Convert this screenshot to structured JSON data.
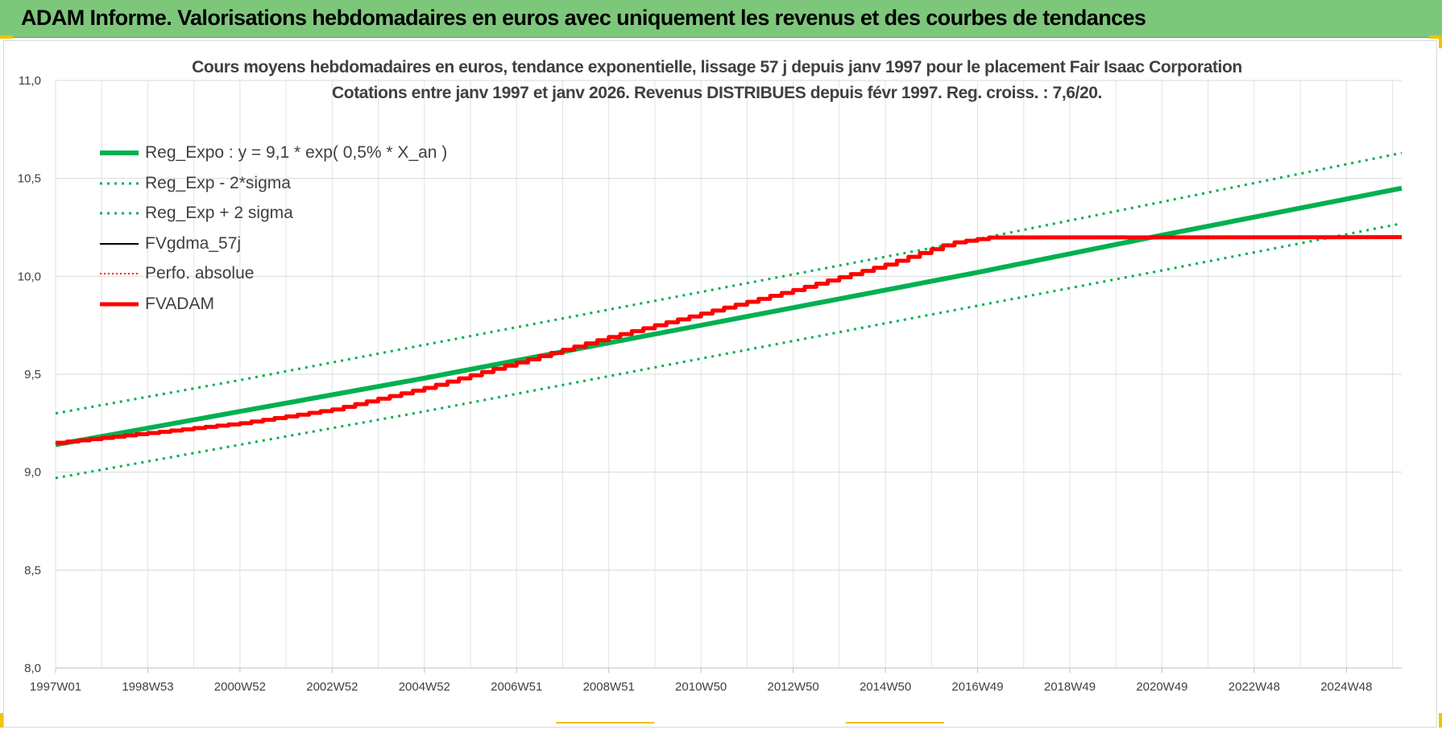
{
  "banner": {
    "title": "ADAM Informe. Valorisations hebdomadaires en euros avec uniquement les revenus et des courbes de tendances"
  },
  "colors": {
    "banner_bg": "#7dc77b",
    "trend_green": "#00b050",
    "fvadam_red": "#ff0000",
    "fvgdma_black": "#000000",
    "corner_accent": "#f2c200"
  },
  "chart_data": {
    "type": "line",
    "title_line1": "Cours moyens hebdomadaires en euros, tendance exponentielle, lissage 57 j depuis janv 1997 pour le placement Fair Isaac Corporation",
    "title_line2": "Cotations entre janv 1997 et janv 2026. Revenus DISTRIBUES depuis févr 1997. Reg. croiss. : 7,6/20.",
    "xlabel": "",
    "ylabel": "",
    "ylim": [
      8.0,
      11.0
    ],
    "yticks": [
      "8,0",
      "8,5",
      "9,0",
      "9,5",
      "10,0",
      "10,5",
      "11,0"
    ],
    "xlim": [
      1997.0,
      2026.2
    ],
    "xticks": [
      {
        "label": "1997W01",
        "x": 1997.0
      },
      {
        "label": "1998W53",
        "x": 1999.0
      },
      {
        "label": "2000W52",
        "x": 2001.0
      },
      {
        "label": "2002W52",
        "x": 2003.0
      },
      {
        "label": "2004W52",
        "x": 2005.0
      },
      {
        "label": "2006W51",
        "x": 2007.0
      },
      {
        "label": "2008W51",
        "x": 2009.0
      },
      {
        "label": "2010W50",
        "x": 2011.0
      },
      {
        "label": "2012W50",
        "x": 2013.0
      },
      {
        "label": "2014W50",
        "x": 2015.0
      },
      {
        "label": "2016W49",
        "x": 2017.0
      },
      {
        "label": "2018W49",
        "x": 2019.0
      },
      {
        "label": "2020W49",
        "x": 2021.0
      },
      {
        "label": "2022W48",
        "x": 2023.0
      },
      {
        "label": "2024W48",
        "x": 2025.0
      }
    ],
    "grid": true,
    "legend_position": "top-left",
    "series": [
      {
        "name": "Reg_Expo : y = 9,1 * exp( 0,5% *  X_an )",
        "style": "solid-thick",
        "color": "#00b050",
        "x": [
          1997.0,
          2001.0,
          2005.0,
          2009.0,
          2013.0,
          2017.0,
          2021.0,
          2026.2
        ],
        "y": [
          9.14,
          9.31,
          9.48,
          9.66,
          9.84,
          10.02,
          10.21,
          10.45
        ]
      },
      {
        "name": "Reg_Exp - 2*sigma",
        "style": "dotted",
        "color": "#00b050",
        "x": [
          1997.0,
          2001.0,
          2005.0,
          2009.0,
          2013.0,
          2017.0,
          2021.0,
          2026.2
        ],
        "y": [
          8.97,
          9.14,
          9.31,
          9.49,
          9.67,
          9.85,
          10.03,
          10.27
        ]
      },
      {
        "name": "Reg_Exp + 2 sigma",
        "style": "dotted",
        "color": "#00b050",
        "x": [
          1997.0,
          2001.0,
          2005.0,
          2009.0,
          2013.0,
          2017.0,
          2021.0,
          2026.2
        ],
        "y": [
          9.3,
          9.47,
          9.65,
          9.83,
          10.01,
          10.19,
          10.38,
          10.63
        ]
      },
      {
        "name": "FVgdma_57j",
        "style": "solid",
        "color": "#000000",
        "x": [],
        "y": []
      },
      {
        "name": "Perfo. absolue",
        "style": "dotted-thin",
        "color": "#ff0000",
        "x": [],
        "y": []
      },
      {
        "name": "FVADAM",
        "style": "solid-thick-stepped",
        "color": "#ff0000",
        "x": [
          1997.0,
          1999.0,
          2001.0,
          2003.0,
          2005.0,
          2007.0,
          2009.0,
          2011.0,
          2013.0,
          2015.0,
          2016.4,
          2017.3,
          2021.0,
          2026.2
        ],
        "y": [
          9.15,
          9.2,
          9.25,
          9.32,
          9.43,
          9.56,
          9.69,
          9.81,
          9.93,
          10.06,
          10.17,
          10.2,
          10.2,
          10.2
        ]
      }
    ]
  }
}
